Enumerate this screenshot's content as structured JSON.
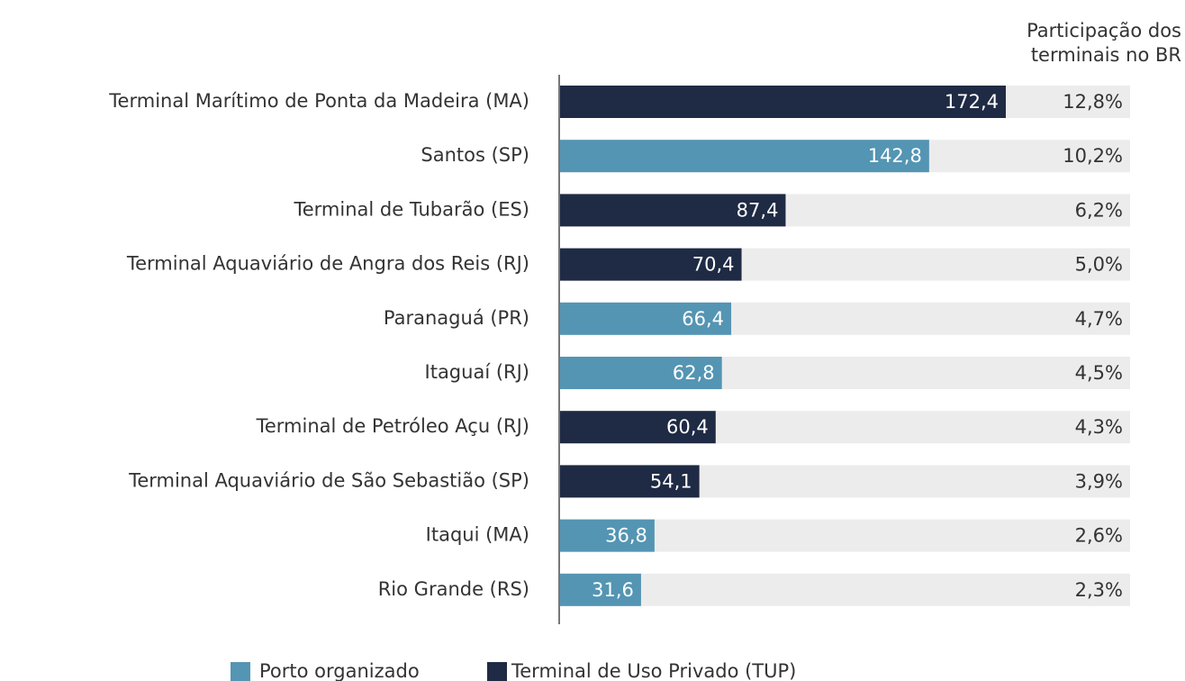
{
  "chart_data": {
    "type": "bar",
    "orientation": "horizontal",
    "categories": [
      "Terminal Marítimo de Ponta da Madeira (MA)",
      "Santos (SP)",
      "Terminal de Tubarão (ES)",
      "Terminal Aquaviário de Angra dos Reis (RJ)",
      "Paranaguá (PR)",
      "Itaguaí (RJ)",
      "Terminal de Petróleo Açu (RJ)",
      "Terminal Aquaviário de São Sebastião (SP)",
      "Itaqui (MA)",
      "Rio Grande (RS)"
    ],
    "series": [
      {
        "name": "Porto organizado",
        "color": "#5495b3",
        "values": [
          null,
          142.8,
          null,
          null,
          66.4,
          62.8,
          null,
          null,
          36.8,
          31.6
        ],
        "value_labels": [
          null,
          "142,8",
          null,
          null,
          "66,4",
          "62,8",
          null,
          null,
          "36,8",
          "31,6"
        ]
      },
      {
        "name": "Terminal de Uso Privado (TUP)",
        "color": "#1f2a44",
        "values": [
          172.4,
          null,
          87.4,
          70.4,
          null,
          null,
          60.4,
          54.1,
          null,
          null
        ],
        "value_labels": [
          "172,4",
          null,
          "87,4",
          "70,4",
          null,
          null,
          "60,4",
          "54,1",
          null,
          null
        ]
      }
    ],
    "shares": {
      "title": [
        "Participação dos",
        "terminais no BR"
      ],
      "values": [
        12.8,
        10.2,
        6.2,
        5.0,
        4.7,
        4.5,
        4.3,
        3.9,
        2.6,
        2.3
      ],
      "value_labels": [
        "12,8%",
        "10,2%",
        "6,2%",
        "5,0%",
        "4,7%",
        "4,5%",
        "4,3%",
        "3,9%",
        "2,6%",
        "2,3%"
      ]
    }
  }
}
